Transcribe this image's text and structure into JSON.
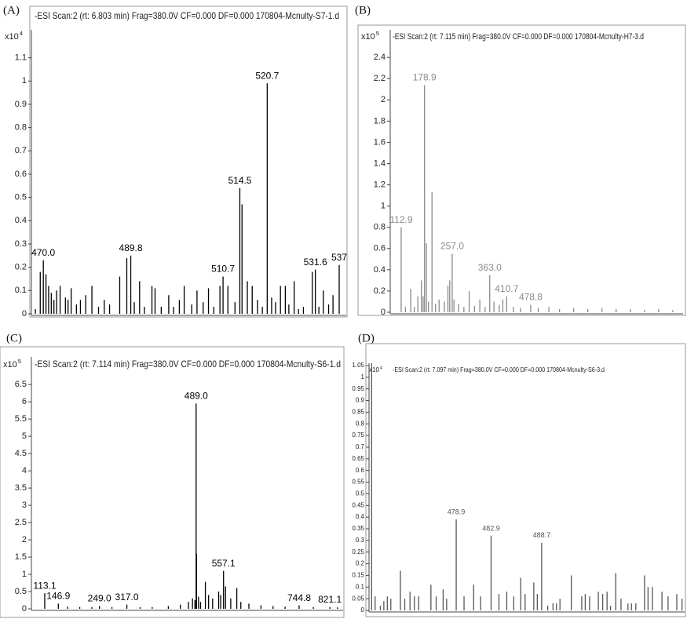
{
  "chart_data": [
    {
      "type": "stem",
      "panel_label": "(A)",
      "title": "-ESI Scan:2 (rt: 6.803 min) Frag=380.0V CF=0.000 DF=0.000 170804-Mcnulty-S7-1.d",
      "y_scale_label": "x10",
      "y_scale_exponent": "4",
      "color": "#000000",
      "xlim": [
        467.3,
        538.6
      ],
      "ylim": [
        0,
        1.22
      ],
      "yticks": [
        0,
        0.1,
        0.2,
        0.3,
        0.4,
        0.5,
        0.6,
        0.7,
        0.8,
        0.9,
        1,
        1.1
      ],
      "x": [
        468.2,
        469.3,
        470.0,
        470.6,
        471.2,
        471.8,
        472.4,
        473.0,
        473.8,
        475.0,
        475.6,
        476.3,
        477.5,
        478.4,
        479.6,
        481.0,
        482.5,
        483.8,
        485.0,
        487.3,
        488.9,
        489.8,
        490.6,
        491.8,
        492.9,
        494.6,
        495.3,
        496.7,
        498.4,
        499.5,
        500.8,
        501.9,
        503.6,
        504.8,
        506.2,
        507.4,
        508.6,
        510.0,
        510.7,
        511.8,
        513.4,
        514.5,
        515.0,
        516.2,
        517.3,
        518.5,
        519.6,
        520.7,
        521.7,
        522.6,
        523.7,
        524.8,
        525.6,
        526.8,
        527.8,
        528.9,
        530.9,
        531.6,
        532.4,
        533.4,
        534.6,
        535.6,
        537.0
      ],
      "values": [
        0.02,
        0.18,
        0.23,
        0.17,
        0.12,
        0.09,
        0.06,
        0.1,
        0.12,
        0.07,
        0.06,
        0.11,
        0.04,
        0.06,
        0.08,
        0.12,
        0.03,
        0.06,
        0.04,
        0.16,
        0.24,
        0.25,
        0.05,
        0.14,
        0.03,
        0.12,
        0.11,
        0.03,
        0.08,
        0.03,
        0.06,
        0.12,
        0.04,
        0.1,
        0.05,
        0.11,
        0.03,
        0.12,
        0.16,
        0.12,
        0.05,
        0.54,
        0.47,
        0.14,
        0.12,
        0.06,
        0.03,
        0.99,
        0.07,
        0.05,
        0.12,
        0.12,
        0.04,
        0.14,
        0.02,
        0.03,
        0.18,
        0.19,
        0.03,
        0.1,
        0.04,
        0.08,
        0.21
      ],
      "x_labels": [
        null,
        null,
        "470.0",
        null,
        null,
        null,
        null,
        null,
        null,
        null,
        null,
        null,
        null,
        null,
        null,
        null,
        null,
        null,
        null,
        null,
        null,
        "489.8",
        null,
        null,
        null,
        null,
        null,
        null,
        null,
        null,
        null,
        null,
        null,
        null,
        null,
        null,
        null,
        null,
        "510.7",
        null,
        null,
        "514.5",
        null,
        null,
        null,
        null,
        null,
        "520.7",
        null,
        null,
        null,
        null,
        null,
        null,
        null,
        null,
        null,
        "531.6",
        null,
        null,
        null,
        null,
        "537"
      ]
    },
    {
      "type": "stem",
      "panel_label": "(B)",
      "title": "-ESI Scan:2 (rt: 7.115 min) Frag=380.0V CF=0.000 DF=0.000 170804-Mcnulty-H7-3.d",
      "y_scale_label": "x10",
      "y_scale_exponent": "5",
      "color": "#8a8a8a",
      "xlim": [
        82,
        909
      ],
      "ylim": [
        0,
        2.66
      ],
      "yticks": [
        0,
        0.2,
        0.4,
        0.6,
        0.8,
        1,
        1.2,
        1.4,
        1.6,
        1.8,
        2,
        2.2,
        2.4
      ],
      "x": [
        112.9,
        125,
        140,
        150,
        160,
        170,
        175,
        178.9,
        184,
        190,
        200,
        210,
        220,
        235,
        245,
        250,
        257.0,
        262,
        275,
        290,
        305,
        320,
        335,
        350,
        363.0,
        375,
        390,
        400,
        410.7,
        430,
        450,
        478.8,
        500,
        530,
        560,
        600,
        640,
        680,
        720,
        760,
        800,
        840,
        880
      ],
      "values": [
        0.8,
        0.05,
        0.22,
        0.05,
        0.15,
        0.3,
        0.15,
        2.14,
        0.65,
        0.1,
        1.13,
        0.08,
        0.12,
        0.1,
        0.25,
        0.3,
        0.55,
        0.12,
        0.08,
        0.05,
        0.2,
        0.06,
        0.12,
        0.05,
        0.35,
        0.1,
        0.07,
        0.12,
        0.15,
        0.05,
        0.04,
        0.07,
        0.04,
        0.05,
        0.03,
        0.04,
        0.03,
        0.04,
        0.03,
        0.03,
        0.02,
        0.03,
        0.02
      ],
      "x_labels": [
        "112.9",
        null,
        null,
        null,
        null,
        null,
        null,
        "178.9",
        null,
        null,
        null,
        null,
        null,
        null,
        null,
        null,
        "257.0",
        null,
        null,
        null,
        null,
        null,
        null,
        null,
        "363.0",
        null,
        null,
        null,
        "410.7",
        null,
        null,
        "478.8",
        null,
        null,
        null,
        null,
        null,
        null,
        null,
        null,
        null,
        null,
        null
      ]
    },
    {
      "type": "stem",
      "panel_label": "(C)",
      "title": "-ESI Scan:2 (rt: 7.114 min) Frag=380.0V CF=0.000 DF=0.000 170804-Mcnulty-S6-1.d",
      "y_scale_label": "x10",
      "y_scale_exponent": "5",
      "color": "#000000",
      "xlim": [
        80,
        854
      ],
      "ylim": [
        0,
        7.3
      ],
      "yticks": [
        0,
        0.5,
        1,
        1.5,
        2,
        2.5,
        3,
        3.5,
        4,
        4.5,
        5,
        5.5,
        6,
        6.5
      ],
      "x": [
        113.1,
        146.9,
        170,
        200,
        230,
        249.0,
        280,
        317.0,
        350,
        380,
        420,
        450,
        470,
        480,
        486,
        489.0,
        490,
        495,
        500,
        512,
        520,
        530,
        545,
        550,
        557.1,
        562,
        575,
        590,
        600,
        620,
        650,
        680,
        710,
        744.8,
        780,
        821.1,
        840
      ],
      "values": [
        0.45,
        0.15,
        0.06,
        0.05,
        0.05,
        0.08,
        0.05,
        0.12,
        0.05,
        0.05,
        0.08,
        0.12,
        0.2,
        0.3,
        0.25,
        5.95,
        1.6,
        0.35,
        0.2,
        0.78,
        0.4,
        0.3,
        0.5,
        0.4,
        1.1,
        0.65,
        0.3,
        0.6,
        0.2,
        0.15,
        0.1,
        0.08,
        0.06,
        0.1,
        0.05,
        0.05,
        0.04
      ],
      "x_labels": [
        "113.1",
        "146.9",
        null,
        null,
        null,
        "249.0",
        null,
        "317.0",
        null,
        null,
        null,
        null,
        null,
        null,
        null,
        "489.0",
        null,
        null,
        null,
        null,
        null,
        null,
        null,
        null,
        "557.1",
        null,
        null,
        null,
        null,
        null,
        null,
        null,
        null,
        "744.8",
        null,
        "821.1",
        null
      ]
    },
    {
      "type": "stem",
      "panel_label": "(D)",
      "title": "-ESI Scan:2 (rt: 7.097 min) Frag=380.0V CF=0.000 DF=0.000 170804-Mcnulty-S6-3.d",
      "y_scale_label": "x10",
      "y_scale_exponent": "4",
      "color": "#555555",
      "xlim": [
        468.9,
        505.1
      ],
      "ylim": [
        0,
        1.06
      ],
      "yticks": [
        0,
        0.05,
        0.1,
        0.15,
        0.2,
        0.25,
        0.3,
        0.35,
        0.4,
        0.45,
        0.5,
        0.55,
        0.6,
        0.65,
        0.7,
        0.75,
        0.8,
        0.85,
        0.9,
        0.95,
        1,
        1.05
      ],
      "x": [
        469.2,
        469.6,
        470.2,
        470.6,
        471.0,
        471.4,
        472.5,
        473.0,
        473.6,
        474.1,
        474.6,
        476.0,
        476.6,
        477.4,
        477.8,
        478.9,
        479.8,
        480.9,
        481.7,
        482.9,
        483.8,
        484.7,
        485.5,
        486.3,
        486.8,
        487.8,
        488.2,
        488.7,
        489.4,
        490.0,
        490.4,
        490.8,
        492.1,
        493.3,
        493.7,
        494.2,
        495.2,
        495.7,
        496.2,
        496.6,
        497.2,
        497.8,
        498.6,
        499.0,
        499.5,
        500.5,
        500.9,
        501.4,
        502.5,
        503.2,
        504.2,
        504.8
      ],
      "values": [
        1.06,
        0.06,
        0.02,
        0.04,
        0.06,
        0.05,
        0.17,
        0.05,
        0.08,
        0.06,
        0.06,
        0.11,
        0.06,
        0.09,
        0.05,
        0.39,
        0.06,
        0.11,
        0.06,
        0.32,
        0.07,
        0.08,
        0.06,
        0.14,
        0.07,
        0.12,
        0.07,
        0.29,
        0.02,
        0.03,
        0.03,
        0.05,
        0.15,
        0.06,
        0.07,
        0.06,
        0.08,
        0.07,
        0.08,
        0.02,
        0.16,
        0.05,
        0.03,
        0.03,
        0.03,
        0.15,
        0.1,
        0.1,
        0.08,
        0.06,
        0.07,
        0.05
      ],
      "x_labels": [
        null,
        null,
        null,
        null,
        null,
        null,
        null,
        null,
        null,
        null,
        null,
        null,
        null,
        null,
        null,
        "478.9",
        null,
        null,
        null,
        "482.9",
        null,
        null,
        null,
        null,
        null,
        null,
        null,
        "488.7",
        null,
        null,
        null,
        null,
        null,
        null,
        null,
        null,
        null,
        null,
        null,
        null,
        null,
        null,
        null,
        null,
        null,
        null,
        null,
        null,
        null,
        null,
        null,
        null
      ]
    }
  ]
}
